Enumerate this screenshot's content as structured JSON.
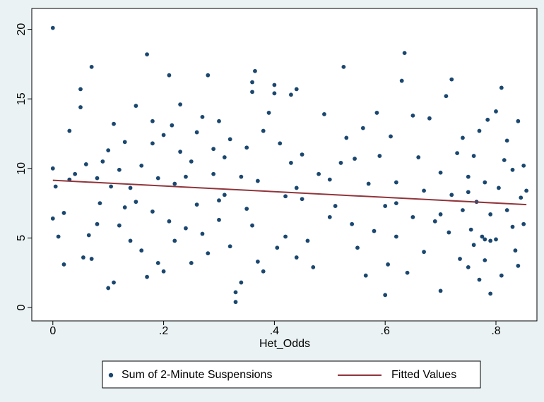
{
  "chart_data": {
    "type": "scatter",
    "xlabel": "Het_Odds",
    "xlim": [
      -0.038,
      0.874
    ],
    "ylim": [
      -0.96,
      21.5
    ],
    "xticks": [
      0,
      {
        "value": 0.2,
        "label": ".2"
      },
      {
        "value": 0.4,
        "label": ".4"
      },
      {
        "value": 0.6,
        "label": ".6"
      },
      {
        "value": 0.8,
        "label": ".8"
      }
    ],
    "yticks": [
      0,
      5,
      10,
      15,
      20
    ],
    "series": [
      {
        "name": "Sum of 2-Minute Suspensions",
        "color": "#1a476f",
        "type": "scatter",
        "x": [
          0,
          0,
          0,
          0.005,
          0.01,
          0.02,
          0.02,
          0.03,
          0.03,
          0.04,
          0.05,
          0.05,
          0.055,
          0.06,
          0.065,
          0.07,
          0.07,
          0.08,
          0.085,
          0.09,
          0.1,
          0.1,
          0.105,
          0.11,
          0.11,
          0.12,
          0.12,
          0.13,
          0.13,
          0.14,
          0.15,
          0.15,
          0.16,
          0.16,
          0.17,
          0.17,
          0.18,
          0.18,
          0.19,
          0.19,
          0.2,
          0.2,
          0.21,
          0.21,
          0.215,
          0.22,
          0.22,
          0.23,
          0.23,
          0.24,
          0.25,
          0.25,
          0.26,
          0.26,
          0.27,
          0.27,
          0.28,
          0.28,
          0.29,
          0.29,
          0.3,
          0.3,
          0.31,
          0.31,
          0.32,
          0.32,
          0.33,
          0.33,
          0.34,
          0.34,
          0.35,
          0.35,
          0.36,
          0.36,
          0.365,
          0.37,
          0.37,
          0.38,
          0.38,
          0.39,
          0.4,
          0.4,
          0.405,
          0.41,
          0.42,
          0.42,
          0.43,
          0.43,
          0.44,
          0.44,
          0.45,
          0.45,
          0.46,
          0.47,
          0.48,
          0.49,
          0.5,
          0.5,
          0.51,
          0.52,
          0.525,
          0.53,
          0.54,
          0.545,
          0.55,
          0.56,
          0.565,
          0.57,
          0.58,
          0.585,
          0.59,
          0.6,
          0.6,
          0.605,
          0.61,
          0.62,
          0.62,
          0.63,
          0.635,
          0.64,
          0.65,
          0.65,
          0.66,
          0.67,
          0.67,
          0.68,
          0.69,
          0.7,
          0.7,
          0.71,
          0.715,
          0.72,
          0.72,
          0.73,
          0.735,
          0.74,
          0.74,
          0.75,
          0.75,
          0.755,
          0.76,
          0.76,
          0.765,
          0.77,
          0.77,
          0.775,
          0.78,
          0.78,
          0.785,
          0.79,
          0.79,
          0.8,
          0.8,
          0.805,
          0.81,
          0.81,
          0.815,
          0.82,
          0.82,
          0.83,
          0.83,
          0.835,
          0.84,
          0.84,
          0.845,
          0.85,
          0.85,
          0.855,
          0.78,
          0.79,
          0.08,
          0.14,
          0.18,
          0.24,
          0.3,
          0.36,
          0.44,
          0.62,
          0.7,
          0.75
        ],
        "values": [
          20.1,
          10,
          6.4,
          8.7,
          5.1,
          3.1,
          6.8,
          12.7,
          9.2,
          9.6,
          15.7,
          14.4,
          3.6,
          10.3,
          5.2,
          17.3,
          3.5,
          9.3,
          7.5,
          10.5,
          1.4,
          11.3,
          8.7,
          13.2,
          1.8,
          5.9,
          9.9,
          11.9,
          7.2,
          4.8,
          14.5,
          7.6,
          4.1,
          10.2,
          2.2,
          18.2,
          6.9,
          13.4,
          3.2,
          9.3,
          2.6,
          12.4,
          16.7,
          6.2,
          13.1,
          8.9,
          4.8,
          14.6,
          11.2,
          5.7,
          3.2,
          10.5,
          7.4,
          12.6,
          13.7,
          5.3,
          16.7,
          3.9,
          9.6,
          11.4,
          6.3,
          13.4,
          8.1,
          10.8,
          4.4,
          12.1,
          1.1,
          0.4,
          9.4,
          1.8,
          7.1,
          11.5,
          15.5,
          16.2,
          17.0,
          3.3,
          9.1,
          2.6,
          12.7,
          14.0,
          16.0,
          15.4,
          4.3,
          11.8,
          8.0,
          5.1,
          10.4,
          15.3,
          3.6,
          15.7,
          7.8,
          11.0,
          4.8,
          2.9,
          9.6,
          13.9,
          6.5,
          9.2,
          7.3,
          10.4,
          17.3,
          12.2,
          6.0,
          10.7,
          4.3,
          12.9,
          2.3,
          8.9,
          5.5,
          14.0,
          10.9,
          0.9,
          7.3,
          3.1,
          12.3,
          9.0,
          5.1,
          16.3,
          18.3,
          2.5,
          13.8,
          6.5,
          10.8,
          4.0,
          8.4,
          13.6,
          6.2,
          1.2,
          9.7,
          15.2,
          5.4,
          16.4,
          8.1,
          11.1,
          3.5,
          7.0,
          12.2,
          2.9,
          9.4,
          5.6,
          4.5,
          10.9,
          7.6,
          12.7,
          2.0,
          5.1,
          9.0,
          3.4,
          13.5,
          6.7,
          1.0,
          14.1,
          4.9,
          8.6,
          15.8,
          2.3,
          10.6,
          7.0,
          12.0,
          5.8,
          9.9,
          4.1,
          13.4,
          3.0,
          7.9,
          10.2,
          6.0,
          8.4,
          4.9,
          4.8,
          6.0,
          8.6,
          11.8,
          9.4,
          7.7,
          5.9,
          8.6,
          7.5,
          6.7,
          8.3
        ]
      },
      {
        "name": "Fitted Values",
        "color": "#90353b",
        "type": "line",
        "x": [
          0,
          0.855
        ],
        "values": [
          9.15,
          7.4
        ]
      }
    ]
  }
}
